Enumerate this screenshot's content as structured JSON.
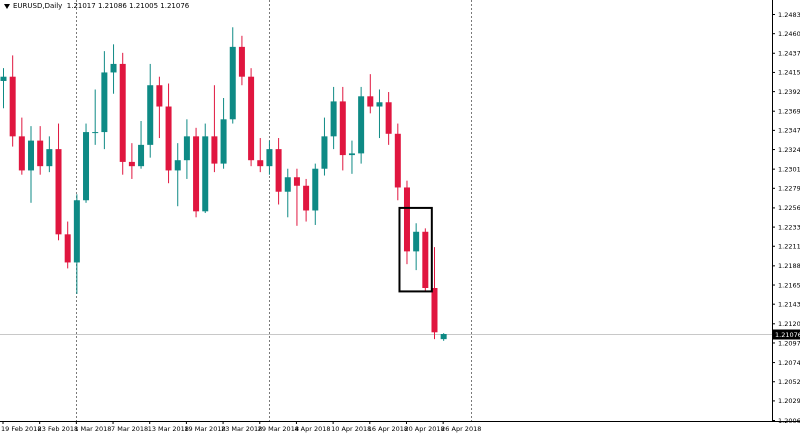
{
  "header": {
    "symbol": "EURUSD,Daily",
    "ohlc": "1.21017 1.21086 1.21005 1.21076"
  },
  "colors": {
    "bull": "#0e8a85",
    "bear": "#e0163f",
    "price_line": "#c8c8c8",
    "price_label_bg": "#000000",
    "price_label_text": "#ffffff",
    "box": "#000000"
  },
  "chart_data": {
    "type": "candlestick",
    "symbol": "EURUSD",
    "timeframe": "Daily",
    "ylim": [
      1.20065,
      1.2483
    ],
    "y_ticks": [
      "1.24830",
      "1.24605",
      "1.24375",
      "1.24150",
      "1.23925",
      "1.23695",
      "1.23470",
      "1.23245",
      "1.23015",
      "1.22790",
      "1.22560",
      "1.22335",
      "1.22110",
      "1.21880",
      "1.21655",
      "1.21430",
      "1.21200",
      "1.20975",
      "1.20745",
      "1.20520",
      "1.20295",
      "1.20065"
    ],
    "x_ticks": [
      {
        "index": 0,
        "label": "19 Feb 2018"
      },
      {
        "index": 4,
        "label": "23 Feb 2018"
      },
      {
        "index": 8,
        "label": "1 Mar 2018"
      },
      {
        "index": 12,
        "label": "7 Mar 2018"
      },
      {
        "index": 16,
        "label": "13 Mar 2018"
      },
      {
        "index": 20,
        "label": "19 Mar 2018"
      },
      {
        "index": 24,
        "label": "23 Mar 2018"
      },
      {
        "index": 28,
        "label": "29 Mar 2018"
      },
      {
        "index": 32,
        "label": "4 Apr 2018"
      },
      {
        "index": 36,
        "label": "10 Apr 2018"
      },
      {
        "index": 40,
        "label": "16 Apr 2018"
      },
      {
        "index": 44,
        "label": "20 Apr 2018"
      },
      {
        "index": 48,
        "label": "26 Apr 2018"
      }
    ],
    "period_separators": [
      8,
      29,
      51
    ],
    "current_price": 1.21076,
    "current_price_label": "1.21076",
    "highlight_box": {
      "from_index": 44,
      "to_index": 46,
      "high": 1.2256,
      "low": 1.2158
    },
    "candles": [
      {
        "o": 1.2405,
        "h": 1.242,
        "l": 1.2373,
        "c": 1.241
      },
      {
        "o": 1.241,
        "h": 1.2435,
        "l": 1.2328,
        "c": 1.234
      },
      {
        "o": 1.234,
        "h": 1.2362,
        "l": 1.2295,
        "c": 1.23
      },
      {
        "o": 1.23,
        "h": 1.2352,
        "l": 1.2262,
        "c": 1.2335
      },
      {
        "o": 1.2335,
        "h": 1.2352,
        "l": 1.2295,
        "c": 1.2305
      },
      {
        "o": 1.2305,
        "h": 1.234,
        "l": 1.2298,
        "c": 1.2325
      },
      {
        "o": 1.2325,
        "h": 1.2355,
        "l": 1.2218,
        "c": 1.2225
      },
      {
        "o": 1.2225,
        "h": 1.224,
        "l": 1.2185,
        "c": 1.2192
      },
      {
        "o": 1.2192,
        "h": 1.2272,
        "l": 1.2155,
        "c": 1.2265
      },
      {
        "o": 1.2265,
        "h": 1.2355,
        "l": 1.2262,
        "c": 1.2345
      },
      {
        "o": 1.2345,
        "h": 1.2395,
        "l": 1.233,
        "c": 1.2345
      },
      {
        "o": 1.2345,
        "h": 1.244,
        "l": 1.2325,
        "c": 1.2415
      },
      {
        "o": 1.2415,
        "h": 1.2448,
        "l": 1.239,
        "c": 1.2425
      },
      {
        "o": 1.2425,
        "h": 1.2438,
        "l": 1.2295,
        "c": 1.231
      },
      {
        "o": 1.231,
        "h": 1.2332,
        "l": 1.229,
        "c": 1.2305
      },
      {
        "o": 1.2305,
        "h": 1.2358,
        "l": 1.2302,
        "c": 1.233
      },
      {
        "o": 1.233,
        "h": 1.2425,
        "l": 1.2315,
        "c": 1.24
      },
      {
        "o": 1.24,
        "h": 1.241,
        "l": 1.2338,
        "c": 1.2375
      },
      {
        "o": 1.2375,
        "h": 1.2402,
        "l": 1.2285,
        "c": 1.23
      },
      {
        "o": 1.23,
        "h": 1.2332,
        "l": 1.2258,
        "c": 1.2312
      },
      {
        "o": 1.2312,
        "h": 1.236,
        "l": 1.229,
        "c": 1.234
      },
      {
        "o": 1.234,
        "h": 1.235,
        "l": 1.2245,
        "c": 1.2252
      },
      {
        "o": 1.2252,
        "h": 1.2355,
        "l": 1.225,
        "c": 1.234
      },
      {
        "o": 1.234,
        "h": 1.24,
        "l": 1.2298,
        "c": 1.2308
      },
      {
        "o": 1.2308,
        "h": 1.2385,
        "l": 1.2302,
        "c": 1.236
      },
      {
        "o": 1.236,
        "h": 1.2468,
        "l": 1.2355,
        "c": 1.2445
      },
      {
        "o": 1.2445,
        "h": 1.2458,
        "l": 1.24,
        "c": 1.241
      },
      {
        "o": 1.241,
        "h": 1.242,
        "l": 1.2305,
        "c": 1.2312
      },
      {
        "o": 1.2312,
        "h": 1.2338,
        "l": 1.2298,
        "c": 1.2305
      },
      {
        "o": 1.2305,
        "h": 1.2335,
        "l": 1.2295,
        "c": 1.2325
      },
      {
        "o": 1.2325,
        "h": 1.2338,
        "l": 1.226,
        "c": 1.2275
      },
      {
        "o": 1.2275,
        "h": 1.2302,
        "l": 1.2245,
        "c": 1.2292
      },
      {
        "o": 1.2292,
        "h": 1.2302,
        "l": 1.2235,
        "c": 1.2282
      },
      {
        "o": 1.2282,
        "h": 1.229,
        "l": 1.224,
        "c": 1.2253
      },
      {
        "o": 1.2253,
        "h": 1.2308,
        "l": 1.2236,
        "c": 1.2302
      },
      {
        "o": 1.2302,
        "h": 1.2362,
        "l": 1.2294,
        "c": 1.234
      },
      {
        "o": 1.234,
        "h": 1.2398,
        "l": 1.2325,
        "c": 1.2381
      },
      {
        "o": 1.2381,
        "h": 1.2398,
        "l": 1.23,
        "c": 1.2318
      },
      {
        "o": 1.2318,
        "h": 1.2335,
        "l": 1.2296,
        "c": 1.232
      },
      {
        "o": 1.232,
        "h": 1.2398,
        "l": 1.2308,
        "c": 1.2387
      },
      {
        "o": 1.2387,
        "h": 1.2413,
        "l": 1.2367,
        "c": 1.2375
      },
      {
        "o": 1.2375,
        "h": 1.2395,
        "l": 1.2338,
        "c": 1.238
      },
      {
        "o": 1.238,
        "h": 1.2392,
        "l": 1.233,
        "c": 1.2343
      },
      {
        "o": 1.2343,
        "h": 1.2355,
        "l": 1.2265,
        "c": 1.228
      },
      {
        "o": 1.228,
        "h": 1.2288,
        "l": 1.219,
        "c": 1.2205
      },
      {
        "o": 1.2205,
        "h": 1.2238,
        "l": 1.2183,
        "c": 1.2228
      },
      {
        "o": 1.2228,
        "h": 1.2232,
        "l": 1.2158,
        "c": 1.2162
      },
      {
        "o": 1.2162,
        "h": 1.221,
        "l": 1.2102,
        "c": 1.211
      },
      {
        "o": 1.2102,
        "h": 1.2109,
        "l": 1.21,
        "c": 1.2108
      }
    ]
  }
}
